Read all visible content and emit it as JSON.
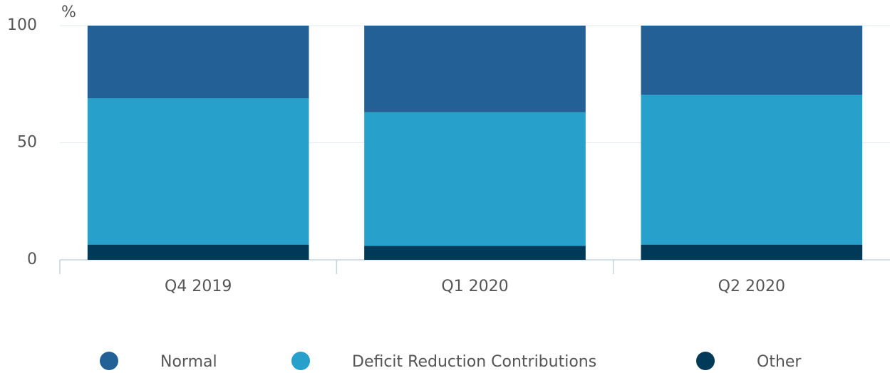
{
  "chart_data": {
    "type": "stacked_bar",
    "y_label": "%",
    "categories": [
      "Q4 2019",
      "Q1 2020",
      "Q2 2020"
    ],
    "series": [
      {
        "name": "Normal",
        "color": "#236096",
        "values": [
          31,
          37,
          29.5
        ]
      },
      {
        "name": "Deficit Reduction Contributions",
        "color": "#27a0cc",
        "values": [
          62.5,
          57,
          64
        ]
      },
      {
        "name": "Other",
        "color": "#003a59",
        "values": [
          6.5,
          6,
          6.5
        ]
      }
    ],
    "stack_from_bottom": "last",
    "ylim": [
      0,
      100
    ],
    "yticks": [
      0,
      50,
      100
    ],
    "grid": true,
    "legend": "bottom"
  }
}
